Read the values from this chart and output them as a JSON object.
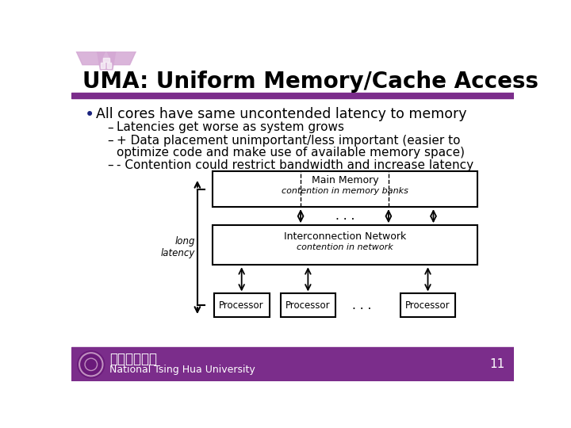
{
  "title": "UMA: Uniform Memory/Cache Access",
  "title_color": "#000000",
  "title_bar_color": "#7B2D8B",
  "background_color": "#FFFFFF",
  "footer_bar_color": "#7B2D8B",
  "footer_text": "National Tsing Hua University",
  "footer_chinese": "國立清華大學",
  "slide_number": "11",
  "bullet_point": "All cores have same uncontended latency to memory",
  "sub_bullet_1": "Latencies get worse as system grows",
  "sub_bullet_2": "+ Data placement unimportant/less important (easier to",
  "sub_bullet_2b": "optimize code and make use of available memory space)",
  "sub_bullet_3": "- Contention could restrict bandwidth and increase latency",
  "diagram": {
    "main_memory_label": "Main Memory",
    "main_memory_sublabel": "contention in memory banks",
    "network_label": "Interconnection Network",
    "network_sublabel": "contention in network",
    "processor_label": "Processor",
    "long_latency_label": "long\nlatency",
    "dots": ". . ."
  },
  "logo_color": "#D4A8D4"
}
